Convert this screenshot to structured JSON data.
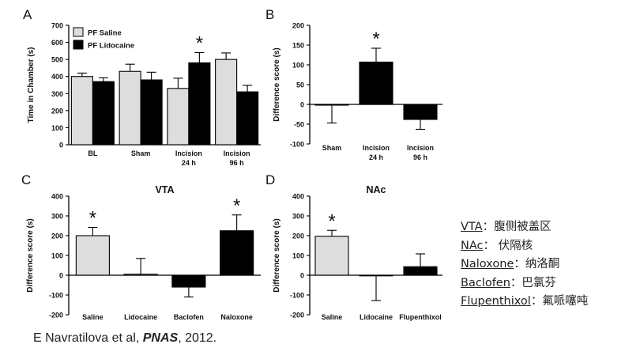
{
  "chart_data": [
    {
      "panel": "A",
      "type": "bar",
      "title": "",
      "ylabel": "Time in Chamber (s)",
      "xlabel": "",
      "ylim": [
        0,
        700
      ],
      "yticks": [
        0,
        100,
        200,
        300,
        400,
        500,
        600,
        700
      ],
      "categories": [
        "BL",
        "Sham",
        "Incision\n24 h",
        "Incision\n96 h"
      ],
      "series": [
        {
          "name": "PF Saline",
          "color": "#dddddd",
          "values": [
            400,
            430,
            330,
            500
          ],
          "errors": [
            20,
            42,
            60,
            38
          ]
        },
        {
          "name": "PF Lidocaine",
          "color": "#000000",
          "values": [
            370,
            380,
            480,
            310
          ],
          "errors": [
            22,
            45,
            60,
            38
          ]
        }
      ],
      "annotations": [
        {
          "category": 2,
          "series": 1,
          "text": "*"
        }
      ],
      "legend": "top-left",
      "grid": false
    },
    {
      "panel": "B",
      "type": "bar",
      "title": "",
      "ylabel": "Difference score (s)",
      "xlabel": "",
      "ylim": [
        -100,
        200
      ],
      "yticks": [
        -100,
        -50,
        0,
        50,
        100,
        150,
        200
      ],
      "categories": [
        "Sham",
        "Incision\n24 h",
        "Incision\n96 h"
      ],
      "series": [
        {
          "name": "",
          "values": [
            -2,
            107,
            -38
          ],
          "errors": [
            45,
            35,
            25
          ],
          "colors": [
            "#ffffff",
            "#000000",
            "#000000"
          ]
        }
      ],
      "annotations": [
        {
          "category": 1,
          "text": "*"
        }
      ],
      "grid": false
    },
    {
      "panel": "C",
      "type": "bar",
      "title": "VTA",
      "ylabel": "Difference score (s)",
      "xlabel": "",
      "ylim": [
        -200,
        400
      ],
      "yticks": [
        -200,
        -100,
        0,
        100,
        200,
        300,
        400
      ],
      "categories": [
        "Saline",
        "Lidocaine",
        "Baclofen",
        "Naloxone"
      ],
      "series": [
        {
          "name": "",
          "values": [
            200,
            5,
            -60,
            225
          ],
          "errors": [
            42,
            80,
            50,
            80
          ],
          "colors": [
            "#dddddd",
            "#ffffff",
            "#000000",
            "#000000"
          ]
        }
      ],
      "annotations": [
        {
          "category": 0,
          "text": "*"
        },
        {
          "category": 3,
          "text": "*"
        }
      ],
      "grid": false
    },
    {
      "panel": "D",
      "type": "bar",
      "title": "NAc",
      "ylabel": "Difference score (s)",
      "xlabel": "",
      "ylim": [
        -200,
        400
      ],
      "yticks": [
        -200,
        -100,
        0,
        100,
        200,
        300,
        400
      ],
      "categories": [
        "Saline",
        "Lidocaine",
        "Flupenthixol"
      ],
      "series": [
        {
          "name": "",
          "values": [
            197,
            -3,
            43
          ],
          "errors": [
            30,
            125,
            65
          ],
          "colors": [
            "#dddddd",
            "#ffffff",
            "#000000"
          ]
        }
      ],
      "annotations": [
        {
          "category": 0,
          "text": "*"
        }
      ],
      "grid": false
    }
  ],
  "glossary": [
    {
      "term": "VTA",
      "sep": "：",
      "meaning": "腹侧被盖区"
    },
    {
      "term": "NAc",
      "sep": "： ",
      "meaning": "伏隔核"
    },
    {
      "term": "Naloxone",
      "sep": "：",
      "meaning": "纳洛酮"
    },
    {
      "term": "Baclofen",
      "sep": "：",
      "meaning": "巴氯芬"
    },
    {
      "term": "Flupenthixol",
      "sep": "：",
      "meaning": "氟哌噻吨"
    }
  ],
  "citation": {
    "prefix": "E Navratilova et al, ",
    "journal": "PNAS",
    "suffix": ", 2012."
  }
}
